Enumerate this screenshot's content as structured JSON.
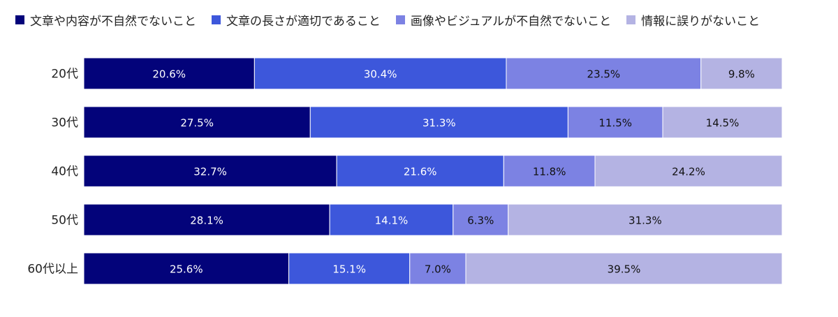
{
  "chart_data": {
    "type": "bar",
    "orientation": "horizontal",
    "stacked": true,
    "normalized": true,
    "legend_position": "top",
    "grid": false,
    "categories": [
      "20代",
      "30代",
      "40代",
      "50代",
      "60代以上"
    ],
    "series": [
      {
        "name": "文章や内容が不自然でないこと",
        "color": "#03037a",
        "label_color": "#ffffff",
        "values": [
          20.6,
          27.5,
          32.7,
          28.1,
          25.6
        ]
      },
      {
        "name": "文章の長さが適切であること",
        "color": "#3d57db",
        "label_color": "#ffffff",
        "values": [
          30.4,
          31.3,
          21.6,
          14.1,
          15.1
        ]
      },
      {
        "name": "画像やビジュアルが不自然でないこと",
        "color": "#7c82e3",
        "label_color": "#111111",
        "values": [
          23.5,
          11.5,
          11.8,
          6.3,
          7.0
        ]
      },
      {
        "name": "情報に誤りがないこと",
        "color": "#b4b3e3",
        "label_color": "#111111",
        "values": [
          9.8,
          14.5,
          24.2,
          31.3,
          39.5
        ]
      }
    ],
    "value_suffix": "%"
  }
}
